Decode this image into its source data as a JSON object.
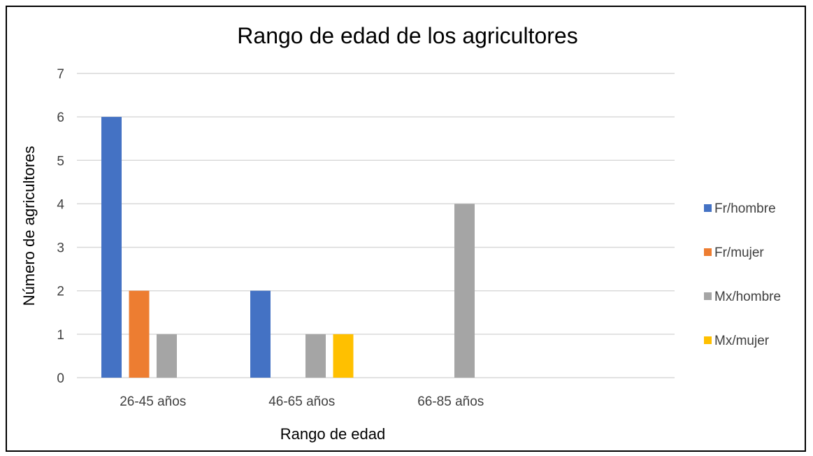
{
  "chart_data": {
    "type": "bar",
    "title": "Rango de edad de los agricultores",
    "xlabel": "Rango de edad",
    "ylabel": "Número de agricultores",
    "categories": [
      "26-45 años",
      "46-65 años",
      "66-85 años"
    ],
    "ylim": [
      0,
      7
    ],
    "yticks": [
      0,
      1,
      2,
      3,
      4,
      5,
      6,
      7
    ],
    "grid": true,
    "legend_position": "right",
    "series": [
      {
        "name": "Fr/hombre",
        "color": "#4472C4",
        "values": [
          6,
          2,
          0
        ]
      },
      {
        "name": "Fr/mujer",
        "color": "#ED7D31",
        "values": [
          2,
          0,
          0
        ]
      },
      {
        "name": "Mx/hombre",
        "color": "#A5A5A5",
        "values": [
          1,
          1,
          4
        ]
      },
      {
        "name": "Mx/mujer",
        "color": "#FFC000",
        "values": [
          0,
          1,
          0
        ]
      }
    ]
  }
}
